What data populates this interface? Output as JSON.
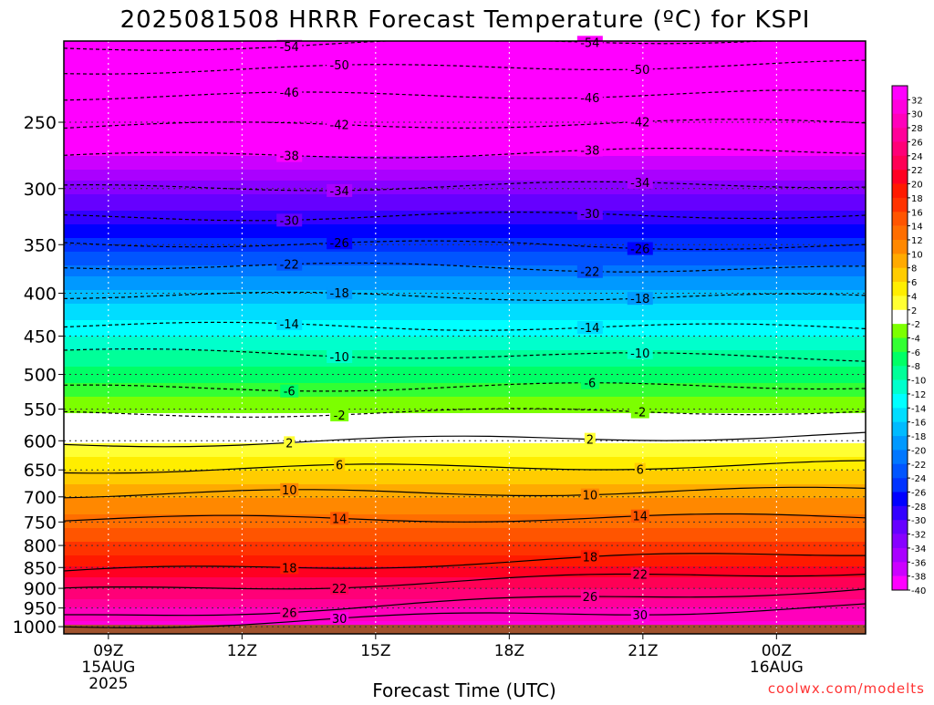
{
  "chart_data": {
    "type": "heatmap",
    "title": "2025081508 HRRR Forecast Temperature (ºC) for KSPI",
    "xlabel": "Forecast Time (UTC)",
    "ylabel": "",
    "credit": "coolwx.com/modelts",
    "x_ticks": [
      {
        "hour": 9,
        "label": "09Z",
        "date": "15AUG",
        "year": "2025"
      },
      {
        "hour": 12,
        "label": "12Z"
      },
      {
        "hour": 15,
        "label": "15Z"
      },
      {
        "hour": 18,
        "label": "18Z"
      },
      {
        "hour": 21,
        "label": "21Z"
      },
      {
        "hour": 24,
        "label": "00Z",
        "date": "16AUG"
      }
    ],
    "xlim": [
      8,
      26
    ],
    "y_ticks": [
      250,
      300,
      350,
      400,
      450,
      500,
      550,
      600,
      650,
      700,
      750,
      800,
      850,
      900,
      950,
      1000
    ],
    "ylim_hpa": [
      1020,
      200
    ],
    "y_scale": "log-pressure",
    "grid": true,
    "colorbar": {
      "labels": [
        32,
        30,
        28,
        26,
        24,
        22,
        20,
        18,
        16,
        14,
        12,
        10,
        8,
        6,
        4,
        2,
        -2,
        -4,
        -6,
        -8,
        -10,
        -12,
        -14,
        -16,
        -18,
        -20,
        -22,
        -24,
        -26,
        -28,
        -30,
        -32,
        -34,
        -36,
        -38,
        -40
      ],
      "colors": [
        "#ff00ff",
        "#ff00dd",
        "#ff00bb",
        "#ff0099",
        "#ff0077",
        "#ff0055",
        "#ff0022",
        "#ff1a00",
        "#ff3300",
        "#ff5500",
        "#ff6e00",
        "#ff8800",
        "#ffaa00",
        "#ffcc00",
        "#ffee00",
        "#ffff33",
        "#ffffff",
        "#7cff00",
        "#33ff33",
        "#00ff66",
        "#00ff99",
        "#00ffcc",
        "#00ffff",
        "#00ddff",
        "#00bbff",
        "#0099ff",
        "#0077ff",
        "#0055ff",
        "#0033ff",
        "#0000ff",
        "#3300ff",
        "#6600ff",
        "#8800ff",
        "#aa00ff",
        "#cc00ff",
        "#ff00ff"
      ]
    },
    "temperature_profile": [
      {
        "p": 1000,
        "t": 31
      },
      {
        "p": 950,
        "t": 28
      },
      {
        "p": 900,
        "t": 24
      },
      {
        "p": 850,
        "t": 20
      },
      {
        "p": 800,
        "t": 16.5
      },
      {
        "p": 750,
        "t": 13
      },
      {
        "p": 700,
        "t": 10
      },
      {
        "p": 650,
        "t": 6
      },
      {
        "p": 610,
        "t": 2.5
      },
      {
        "p": 580,
        "t": 0
      },
      {
        "p": 550,
        "t": -2.5
      },
      {
        "p": 500,
        "t": -7
      },
      {
        "p": 450,
        "t": -12
      },
      {
        "p": 400,
        "t": -17.5
      },
      {
        "p": 350,
        "t": -25
      },
      {
        "p": 300,
        "t": -33
      },
      {
        "p": 250,
        "t": -43
      },
      {
        "p": 225,
        "t": -48
      },
      {
        "p": 200,
        "t": -54
      }
    ],
    "contours": [
      {
        "value": -54,
        "style": "dashed",
        "p_start": 204,
        "p_end": 198
      },
      {
        "value": -50,
        "style": "dashed",
        "p_start": 217,
        "p_end": 213
      },
      {
        "value": -46,
        "style": "dashed",
        "p_start": 233,
        "p_end": 231
      },
      {
        "value": -42,
        "style": "dashed",
        "p_start": 253,
        "p_end": 250
      },
      {
        "value": -38,
        "style": "dashed",
        "p_start": 275,
        "p_end": 270
      },
      {
        "value": -34,
        "style": "dashed",
        "p_start": 300,
        "p_end": 296
      },
      {
        "value": -30,
        "style": "dashed",
        "p_start": 325,
        "p_end": 322
      },
      {
        "value": -26,
        "style": "dashed",
        "p_start": 348,
        "p_end": 352
      },
      {
        "value": -22,
        "style": "dashed",
        "p_start": 370,
        "p_end": 375
      },
      {
        "value": -18,
        "style": "dashed",
        "p_start": 402,
        "p_end": 405
      },
      {
        "value": -14,
        "style": "dashed",
        "p_start": 437,
        "p_end": 440
      },
      {
        "value": -10,
        "style": "dashed",
        "p_start": 470,
        "p_end": 478
      },
      {
        "value": -6,
        "style": "dashed",
        "p_start": 520,
        "p_end": 515
      },
      {
        "value": -2,
        "style": "dashed",
        "p_start": 558,
        "p_end": 552
      },
      {
        "value": 2,
        "style": "solid",
        "p_start": 606,
        "p_end": 590
      },
      {
        "value": 6,
        "style": "solid",
        "p_start": 650,
        "p_end": 640
      },
      {
        "value": 10,
        "style": "solid",
        "p_start": 695,
        "p_end": 688
      },
      {
        "value": 14,
        "style": "solid",
        "p_start": 745,
        "p_end": 740
      },
      {
        "value": 18,
        "style": "solid",
        "p_start": 862,
        "p_end": 815
      },
      {
        "value": 22,
        "style": "solid",
        "p_start": 908,
        "p_end": 858
      },
      {
        "value": 26,
        "style": "solid",
        "p_start": 975,
        "p_end": 900
      },
      {
        "value": 30,
        "style": "solid",
        "p_start": 1000,
        "p_end": 945
      }
    ],
    "surface_pressure_hpa": 995
  }
}
